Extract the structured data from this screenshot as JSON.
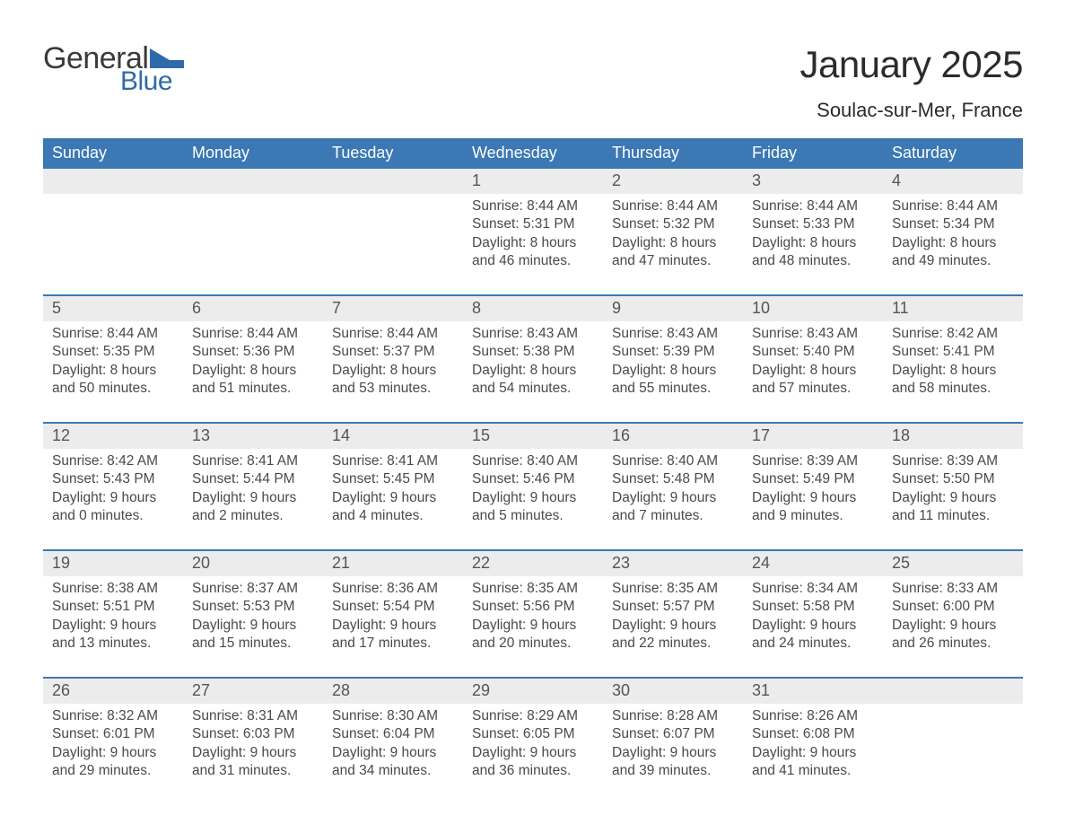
{
  "logo": {
    "word1": "General",
    "word2": "Blue"
  },
  "title": "January 2025",
  "location": "Soulac-sur-Mer, France",
  "colors": {
    "header_bg": "#3b78b4",
    "header_text": "#ffffff",
    "band_bg": "#ececec",
    "accent_rule": "#3b78b4",
    "page_bg": "#ffffff",
    "text": "#363636",
    "logo_blue": "#2f6aa8"
  },
  "typography": {
    "title_fontsize": 42,
    "location_fontsize": 22,
    "header_fontsize": 18,
    "daynum_fontsize": 18,
    "body_fontsize": 15.5
  },
  "day_names": [
    "Sunday",
    "Monday",
    "Tuesday",
    "Wednesday",
    "Thursday",
    "Friday",
    "Saturday"
  ],
  "lead_blank": 3,
  "days": [
    {
      "n": 1,
      "sunrise": "8:44 AM",
      "sunset": "5:31 PM",
      "daylight": "8 hours and 46 minutes."
    },
    {
      "n": 2,
      "sunrise": "8:44 AM",
      "sunset": "5:32 PM",
      "daylight": "8 hours and 47 minutes."
    },
    {
      "n": 3,
      "sunrise": "8:44 AM",
      "sunset": "5:33 PM",
      "daylight": "8 hours and 48 minutes."
    },
    {
      "n": 4,
      "sunrise": "8:44 AM",
      "sunset": "5:34 PM",
      "daylight": "8 hours and 49 minutes."
    },
    {
      "n": 5,
      "sunrise": "8:44 AM",
      "sunset": "5:35 PM",
      "daylight": "8 hours and 50 minutes."
    },
    {
      "n": 6,
      "sunrise": "8:44 AM",
      "sunset": "5:36 PM",
      "daylight": "8 hours and 51 minutes."
    },
    {
      "n": 7,
      "sunrise": "8:44 AM",
      "sunset": "5:37 PM",
      "daylight": "8 hours and 53 minutes."
    },
    {
      "n": 8,
      "sunrise": "8:43 AM",
      "sunset": "5:38 PM",
      "daylight": "8 hours and 54 minutes."
    },
    {
      "n": 9,
      "sunrise": "8:43 AM",
      "sunset": "5:39 PM",
      "daylight": "8 hours and 55 minutes."
    },
    {
      "n": 10,
      "sunrise": "8:43 AM",
      "sunset": "5:40 PM",
      "daylight": "8 hours and 57 minutes."
    },
    {
      "n": 11,
      "sunrise": "8:42 AM",
      "sunset": "5:41 PM",
      "daylight": "8 hours and 58 minutes."
    },
    {
      "n": 12,
      "sunrise": "8:42 AM",
      "sunset": "5:43 PM",
      "daylight": "9 hours and 0 minutes."
    },
    {
      "n": 13,
      "sunrise": "8:41 AM",
      "sunset": "5:44 PM",
      "daylight": "9 hours and 2 minutes."
    },
    {
      "n": 14,
      "sunrise": "8:41 AM",
      "sunset": "5:45 PM",
      "daylight": "9 hours and 4 minutes."
    },
    {
      "n": 15,
      "sunrise": "8:40 AM",
      "sunset": "5:46 PM",
      "daylight": "9 hours and 5 minutes."
    },
    {
      "n": 16,
      "sunrise": "8:40 AM",
      "sunset": "5:48 PM",
      "daylight": "9 hours and 7 minutes."
    },
    {
      "n": 17,
      "sunrise": "8:39 AM",
      "sunset": "5:49 PM",
      "daylight": "9 hours and 9 minutes."
    },
    {
      "n": 18,
      "sunrise": "8:39 AM",
      "sunset": "5:50 PM",
      "daylight": "9 hours and 11 minutes."
    },
    {
      "n": 19,
      "sunrise": "8:38 AM",
      "sunset": "5:51 PM",
      "daylight": "9 hours and 13 minutes."
    },
    {
      "n": 20,
      "sunrise": "8:37 AM",
      "sunset": "5:53 PM",
      "daylight": "9 hours and 15 minutes."
    },
    {
      "n": 21,
      "sunrise": "8:36 AM",
      "sunset": "5:54 PM",
      "daylight": "9 hours and 17 minutes."
    },
    {
      "n": 22,
      "sunrise": "8:35 AM",
      "sunset": "5:56 PM",
      "daylight": "9 hours and 20 minutes."
    },
    {
      "n": 23,
      "sunrise": "8:35 AM",
      "sunset": "5:57 PM",
      "daylight": "9 hours and 22 minutes."
    },
    {
      "n": 24,
      "sunrise": "8:34 AM",
      "sunset": "5:58 PM",
      "daylight": "9 hours and 24 minutes."
    },
    {
      "n": 25,
      "sunrise": "8:33 AM",
      "sunset": "6:00 PM",
      "daylight": "9 hours and 26 minutes."
    },
    {
      "n": 26,
      "sunrise": "8:32 AM",
      "sunset": "6:01 PM",
      "daylight": "9 hours and 29 minutes."
    },
    {
      "n": 27,
      "sunrise": "8:31 AM",
      "sunset": "6:03 PM",
      "daylight": "9 hours and 31 minutes."
    },
    {
      "n": 28,
      "sunrise": "8:30 AM",
      "sunset": "6:04 PM",
      "daylight": "9 hours and 34 minutes."
    },
    {
      "n": 29,
      "sunrise": "8:29 AM",
      "sunset": "6:05 PM",
      "daylight": "9 hours and 36 minutes."
    },
    {
      "n": 30,
      "sunrise": "8:28 AM",
      "sunset": "6:07 PM",
      "daylight": "9 hours and 39 minutes."
    },
    {
      "n": 31,
      "sunrise": "8:26 AM",
      "sunset": "6:08 PM",
      "daylight": "9 hours and 41 minutes."
    }
  ],
  "labels": {
    "sunrise": "Sunrise:",
    "sunset": "Sunset:",
    "daylight": "Daylight:"
  }
}
